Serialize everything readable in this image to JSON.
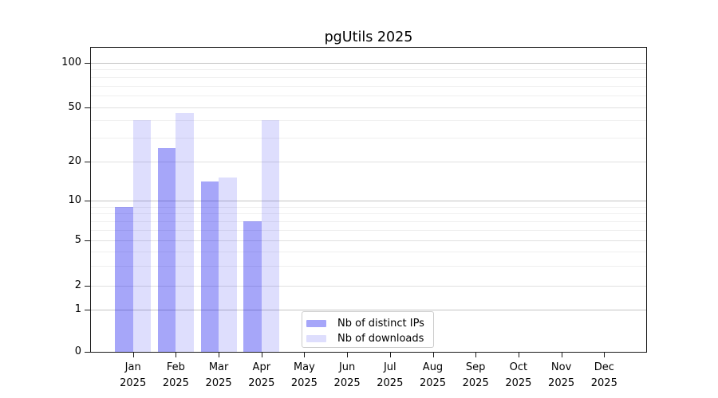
{
  "chart_data": {
    "type": "bar",
    "title": "pgUtils 2025",
    "categories": [
      "Jan",
      "Feb",
      "Mar",
      "Apr",
      "May",
      "Jun",
      "Jul",
      "Aug",
      "Sep",
      "Oct",
      "Nov",
      "Dec"
    ],
    "x_axis": {
      "year": "2025"
    },
    "series": [
      {
        "name": "Nb of distinct IPs",
        "color": "rgba(0,0,238,0.35)",
        "color_hex": "#a6a6f9",
        "values": [
          9,
          25,
          14,
          7,
          0,
          0,
          0,
          0,
          0,
          0,
          0,
          0
        ]
      },
      {
        "name": "Nb of downloads",
        "color": "rgba(0,0,238,0.13)",
        "color_hex": "#dfdffc",
        "values": [
          40,
          45,
          15,
          40,
          0,
          0,
          0,
          0,
          0,
          0,
          0,
          0
        ]
      }
    ],
    "y_axis": {
      "scale": "log-like",
      "ticks": [
        0,
        1,
        2,
        5,
        10,
        20,
        50,
        100
      ],
      "minor_gridlines": [
        3,
        4,
        6,
        7,
        8,
        9,
        30,
        40,
        60,
        70,
        80,
        90
      ],
      "range": [
        0,
        100
      ]
    },
    "legend": {
      "position": "bottom-center",
      "entries": [
        "Nb of distinct IPs",
        "Nb of downloads"
      ]
    },
    "colors": {
      "grid_major": "#c4c4c4",
      "grid_mid": "#e0e0e0",
      "grid_minor": "#efefef",
      "axis": "#1a1a1a",
      "background": "#ffffff"
    },
    "grid": true
  }
}
